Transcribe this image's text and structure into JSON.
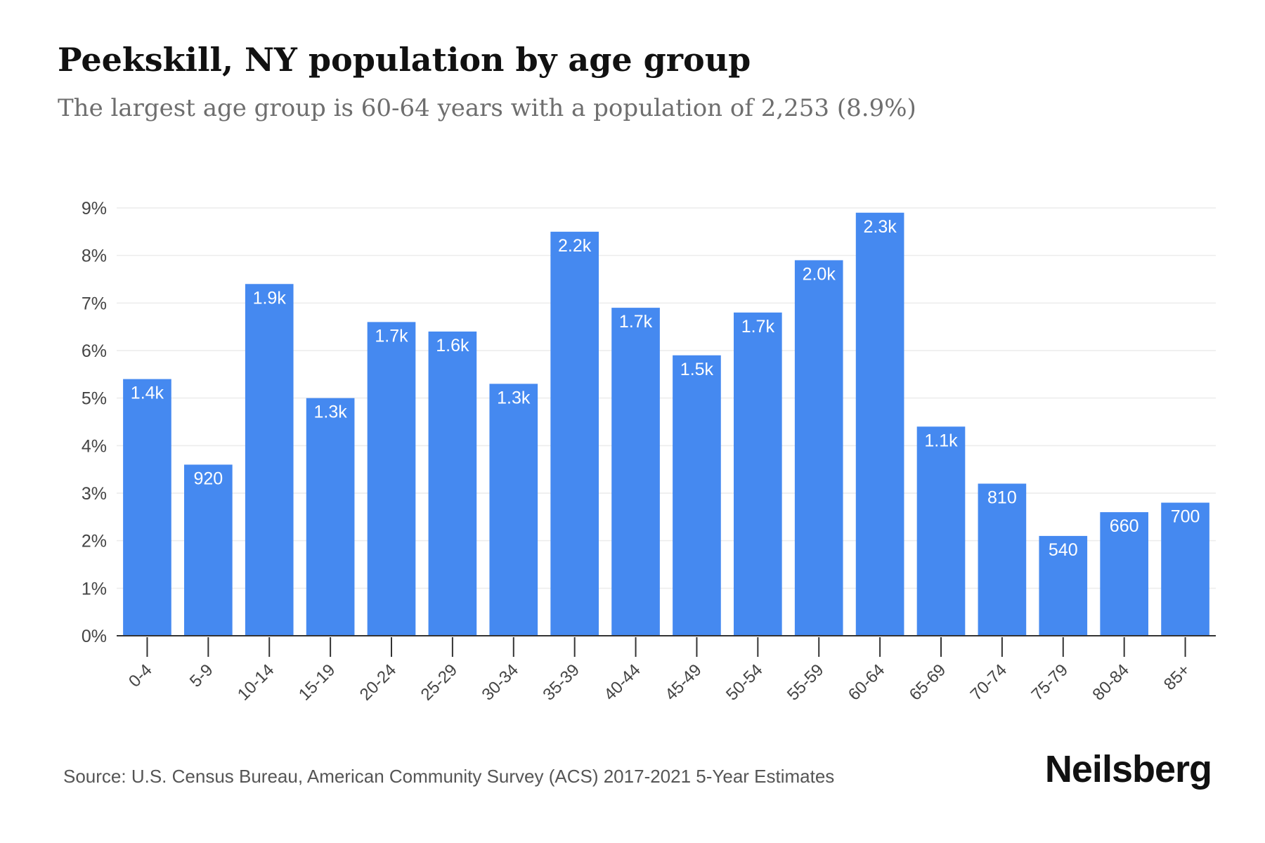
{
  "header": {
    "title": "Peekskill, NY population by age group",
    "subtitle": "The largest age group is 60-64 years with a population of 2,253 (8.9%)"
  },
  "footer": {
    "source": "Source: U.S. Census Bureau, American Community Survey (ACS) 2017-2021 5-Year Estimates",
    "brand": "Neilsberg"
  },
  "colors": {
    "bar": "#4589f0",
    "grid": "#ececec",
    "axis": "#333333",
    "label_text": "#ffffff"
  },
  "chart_data": {
    "type": "bar",
    "title": "Peekskill, NY population by age group",
    "categories": [
      "0-4",
      "5-9",
      "10-14",
      "15-19",
      "20-24",
      "25-29",
      "30-34",
      "35-39",
      "40-44",
      "45-49",
      "50-54",
      "55-59",
      "60-64",
      "65-69",
      "70-74",
      "75-79",
      "80-84",
      "85+"
    ],
    "values": [
      5.4,
      3.6,
      7.4,
      5.0,
      6.6,
      6.4,
      5.3,
      8.5,
      6.9,
      5.9,
      6.8,
      7.9,
      8.9,
      4.4,
      3.2,
      2.1,
      2.6,
      2.8
    ],
    "data_labels": [
      "1.4k",
      "920",
      "1.9k",
      "1.3k",
      "1.7k",
      "1.6k",
      "1.3k",
      "2.2k",
      "1.7k",
      "1.5k",
      "1.7k",
      "2.0k",
      "2.3k",
      "1.1k",
      "810",
      "540",
      "660",
      "700"
    ],
    "ylim": [
      0,
      9
    ],
    "yticks": [
      "0%",
      "1%",
      "2%",
      "3%",
      "4%",
      "5%",
      "6%",
      "7%",
      "8%",
      "9%"
    ],
    "grid": true,
    "legend": "none"
  }
}
